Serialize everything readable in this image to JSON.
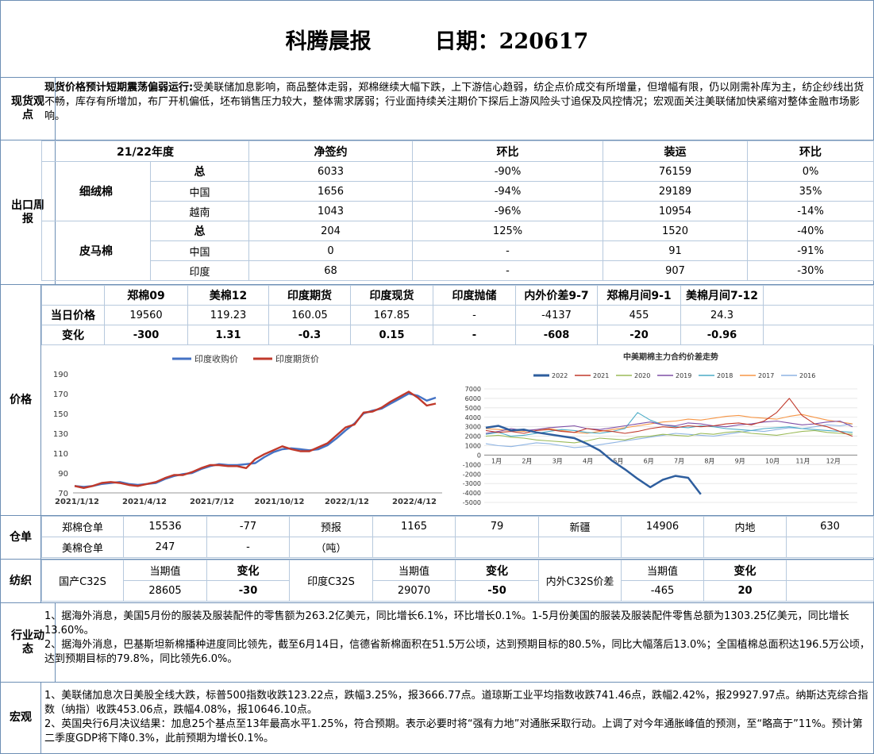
{
  "header": {
    "title": "科腾晨报",
    "date_label": "日期：220617"
  },
  "spot": {
    "label": "现货观点",
    "headline": "现货价格预计短期震荡偏弱运行:",
    "body": "受美联储加息影响，商品整体走弱，郑棉继续大幅下跌，上下游信心趋弱，纺企点价成交有所增量，但增幅有限，仍以刚需补库为主，纺企纱线出货不畅，库存有所增加，布厂开机偏低，坯布销售压力较大，整体需求孱弱；行业面持续关注期价下探后上游风险头寸追保及风控情况；宏观面关注美联储加快紧缩对整体金融市场影响。"
  },
  "export": {
    "label": "出口周报",
    "headers": [
      "21/22年度",
      "净签约",
      "环比",
      "装运",
      "环比"
    ],
    "groups": [
      {
        "name": "细绒棉",
        "rows": [
          {
            "sub": "总",
            "net": "6033",
            "net_chg": "-90%",
            "ship": "76159",
            "ship_chg": "0%"
          },
          {
            "sub": "中国",
            "net": "1656",
            "net_chg": "-94%",
            "ship": "29189",
            "ship_chg": "35%"
          },
          {
            "sub": "越南",
            "net": "1043",
            "net_chg": "-96%",
            "ship": "10954",
            "ship_chg": "-14%"
          }
        ]
      },
      {
        "name": "皮马棉",
        "rows": [
          {
            "sub": "总",
            "net": "204",
            "net_chg": "125%",
            "ship": "1520",
            "ship_chg": "-40%"
          },
          {
            "sub": "中国",
            "net": "0",
            "net_chg": "-",
            "ship": "91",
            "ship_chg": "-91%"
          },
          {
            "sub": "印度",
            "net": "68",
            "net_chg": "-",
            "ship": "907",
            "ship_chg": "-30%"
          }
        ]
      }
    ]
  },
  "price": {
    "label": "价格",
    "headers": [
      "郑棉09",
      "美棉12",
      "印度期货",
      "印度现货",
      "印度抛储",
      "内外价差9-7",
      "郑棉月间9-1",
      "美棉月间7-12"
    ],
    "today_label": "当日价格",
    "today": [
      "19560",
      "119.23",
      "160.05",
      "167.85",
      "-",
      "-4137",
      "455",
      "24.3"
    ],
    "change_label": "变化",
    "change": [
      "-300",
      "1.31",
      "-0.3",
      "0.15",
      "-",
      "-608",
      "-20",
      "-0.96"
    ]
  },
  "chart_data": [
    {
      "type": "line",
      "title": "",
      "legend": [
        "印度收购价",
        "印度期货价"
      ],
      "legend_position": "top",
      "x_ticks": [
        "2021/1/12",
        "2021/4/12",
        "2021/7/12",
        "2021/10/12",
        "2022/1/12",
        "2022/4/12"
      ],
      "y_ticks": [
        70,
        90,
        110,
        130,
        150,
        170,
        190
      ],
      "ylim": [
        70,
        190
      ],
      "colors": [
        "#4472c4",
        "#c0392b"
      ],
      "series": [
        {
          "name": "印度收购价",
          "values": [
            77,
            76,
            77,
            79,
            80,
            81,
            79,
            78,
            79,
            80,
            84,
            87,
            89,
            90,
            94,
            97,
            99,
            98,
            98,
            99,
            100,
            106,
            111,
            114,
            115,
            114,
            113,
            114,
            118,
            125,
            133,
            140,
            150,
            153,
            155,
            160,
            165,
            170,
            168,
            163,
            166
          ]
        },
        {
          "name": "印度期货价",
          "values": [
            77,
            75,
            77,
            80,
            81,
            80,
            78,
            77,
            79,
            81,
            85,
            88,
            88,
            91,
            95,
            98,
            98,
            97,
            97,
            95,
            104,
            109,
            113,
            117,
            114,
            112,
            112,
            116,
            120,
            128,
            136,
            139,
            151,
            152,
            156,
            162,
            167,
            172,
            166,
            158,
            160
          ]
        }
      ]
    },
    {
      "type": "line",
      "title": "中美期棉主力合约价差走势",
      "legend": [
        "2022",
        "2021",
        "2020",
        "2019",
        "2018",
        "2017",
        "2016"
      ],
      "legend_position": "top",
      "colors": [
        "#2e5e9e",
        "#c0392b",
        "#9bbb59",
        "#7f4fa6",
        "#4bacc6",
        "#f79646",
        "#8eb4e3"
      ],
      "x_ticks": [
        "1月",
        "2月",
        "3月",
        "4月",
        "5月",
        "6月",
        "7月",
        "8月",
        "9月",
        "10月",
        "11月",
        "12月"
      ],
      "y_ticks": [
        -5000,
        -4000,
        -3000,
        -2000,
        -1000,
        0,
        1000,
        2000,
        3000,
        4000,
        5000,
        6000,
        7000
      ],
      "ylim": [
        -5000,
        7000
      ],
      "series": [
        {
          "name": "2022",
          "values": [
            2900,
            3100,
            2600,
            2700,
            2400,
            2200,
            2000,
            1800,
            1200,
            500,
            -600,
            -1500,
            -2500,
            -3400,
            -2600,
            -2200,
            -2400,
            -4137
          ]
        },
        {
          "name": "2021",
          "values": [
            2600,
            2400,
            2500,
            2300,
            2600,
            2700,
            2500,
            2400,
            2800,
            2600,
            2500,
            2300,
            2500,
            2800,
            3000,
            2900,
            3100,
            3000,
            3100,
            3300,
            3400,
            3200,
            3600,
            4500,
            6000,
            4200,
            3300,
            3000,
            2500,
            2000
          ]
        },
        {
          "name": "2020",
          "values": [
            2000,
            2100,
            1900,
            1800,
            1600,
            1500,
            1400,
            1300,
            1500,
            1800,
            1700,
            1600,
            1900,
            2000,
            2200,
            2100,
            2000,
            2300,
            2200,
            2400,
            2500,
            2300,
            2200,
            2100,
            2300,
            2500,
            2600,
            2400,
            2300,
            2200
          ]
        },
        {
          "name": "2019",
          "values": [
            2300,
            2500,
            2800,
            2600,
            2700,
            2900,
            3000,
            3100,
            2800,
            2700,
            2900,
            3100,
            3300,
            3500,
            3200,
            3100,
            3400,
            3300,
            3100,
            3000,
            3200,
            3300,
            3500,
            3600,
            3400,
            3200,
            3300,
            3500,
            3600,
            3000
          ]
        },
        {
          "name": "2018",
          "values": [
            2200,
            2400,
            2000,
            2100,
            2300,
            2500,
            2700,
            2600,
            2400,
            2300,
            2500,
            2800,
            4500,
            3700,
            3200,
            3000,
            2900,
            3100,
            3000,
            2800,
            2700,
            2600,
            2800,
            2900,
            3000,
            2800,
            2700,
            2600,
            2500,
            2400
          ]
        },
        {
          "name": "2017",
          "values": [
            2800,
            2700,
            2600,
            2500,
            2700,
            2800,
            2600,
            2400,
            2300,
            2500,
            2700,
            2900,
            3100,
            3300,
            3500,
            3600,
            3800,
            3700,
            3900,
            4100,
            4200,
            4000,
            3900,
            3800,
            4100,
            4300,
            4000,
            3700,
            3500,
            3300
          ]
        },
        {
          "name": "2016",
          "values": [
            1200,
            1000,
            900,
            1100,
            1300,
            1200,
            1000,
            800,
            900,
            1100,
            1300,
            1500,
            1700,
            1900,
            2100,
            2300,
            2200,
            2100,
            2000,
            2200,
            2400,
            2600,
            2500,
            2700,
            2900,
            2800,
            3000,
            3200,
            3100,
            3300
          ]
        }
      ]
    }
  ],
  "warehouse": {
    "label": "仓单",
    "zz_label": "郑棉仓单",
    "zz_value": "15536",
    "zz_change": "-77",
    "fc_label": "预报",
    "fc_value": "1165",
    "fc_change": "79",
    "xj_label": "新疆",
    "xj_value": "14906",
    "nd_label": "内地",
    "nd_value": "630",
    "mm_label": "美棉仓单",
    "mm_value": "247",
    "mm_change": "-",
    "unit": "（吨）"
  },
  "textile": {
    "label": "纺织",
    "current_label": "当期值",
    "change_label": "变化",
    "items": [
      {
        "name": "国产C32S",
        "value": "28605",
        "change": "-30"
      },
      {
        "name": "印度C32S",
        "value": "29070",
        "change": "-50"
      },
      {
        "name": "内外C32S价差",
        "value": "-465",
        "change": "20"
      }
    ]
  },
  "industry": {
    "label": "行业动态",
    "items": [
      "1、据海外消息，美国5月份的服装及服装配件的零售额为263.2亿美元，同比增长6.1%，环比增长0.1%。1-5月份美国的服装及服装配件零售总额为1303.25亿美元，同比增长13.60%。",
      "2、据海外消息，巴基斯坦新棉播种进度同比领先，截至6月14日，信德省新棉面积在51.5万公顷，达到预期目标的80.5%，同比大幅落后13.0%；全国植棉总面积达196.5万公顷，达到预期目标的79.8%，同比领先6.0%。"
    ]
  },
  "macro": {
    "label": "宏观",
    "items": [
      "1、美联储加息次日美股全线大跌，标普500指数收跌123.22点，跌幅3.25%，报3666.77点。道琼斯工业平均指数收跌741.46点，跌幅2.42%，报29927.97点。纳斯达克综合指数（纳指）收跌453.06点，跌幅4.08%，报10646.10点。",
      "2、英国央行6月决议结果：加息25个基点至13年最高水平1.25%，符合预期。表示必要时将“强有力地”对通胀采取行动。上调了对今年通胀峰值的预测，至“略高于”11%。预计第二季度GDP将下降0.3%，此前预期为增长0.1%。"
    ]
  }
}
